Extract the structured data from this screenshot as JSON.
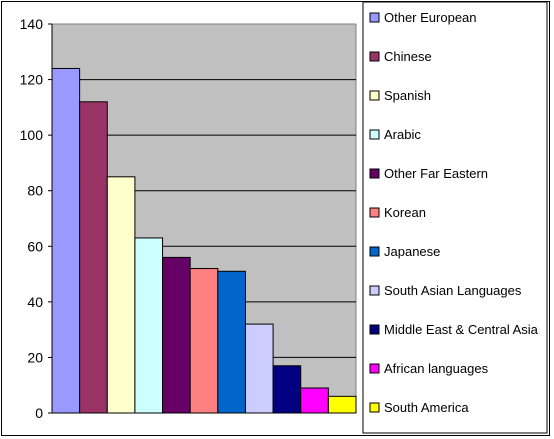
{
  "chart_data": {
    "type": "bar",
    "title": "",
    "xlabel": "",
    "ylabel": "",
    "ylim": [
      0,
      140
    ],
    "yticks": [
      0,
      20,
      40,
      60,
      80,
      100,
      120,
      140
    ],
    "grid": true,
    "legend_position": "right",
    "plot_background": "#c0c0c0",
    "series": [
      {
        "name": "Other European",
        "value": 124,
        "color": "#9999ff"
      },
      {
        "name": "Chinese",
        "value": 112,
        "color": "#993366"
      },
      {
        "name": "Spanish",
        "value": 85,
        "color": "#ffffcc"
      },
      {
        "name": "Arabic",
        "value": 63,
        "color": "#ccffff"
      },
      {
        "name": "Other Far Eastern",
        "value": 56,
        "color": "#660066"
      },
      {
        "name": "Korean",
        "value": 52,
        "color": "#ff8080"
      },
      {
        "name": "Japanese",
        "value": 51,
        "color": "#0066cc"
      },
      {
        "name": "South Asian Languages",
        "value": 32,
        "color": "#ccccff"
      },
      {
        "name": "Middle East & Central Asia",
        "value": 17,
        "color": "#000080"
      },
      {
        "name": "African languages",
        "value": 9,
        "color": "#ff00ff"
      },
      {
        "name": "South America",
        "value": 6,
        "color": "#ffff00"
      }
    ]
  }
}
